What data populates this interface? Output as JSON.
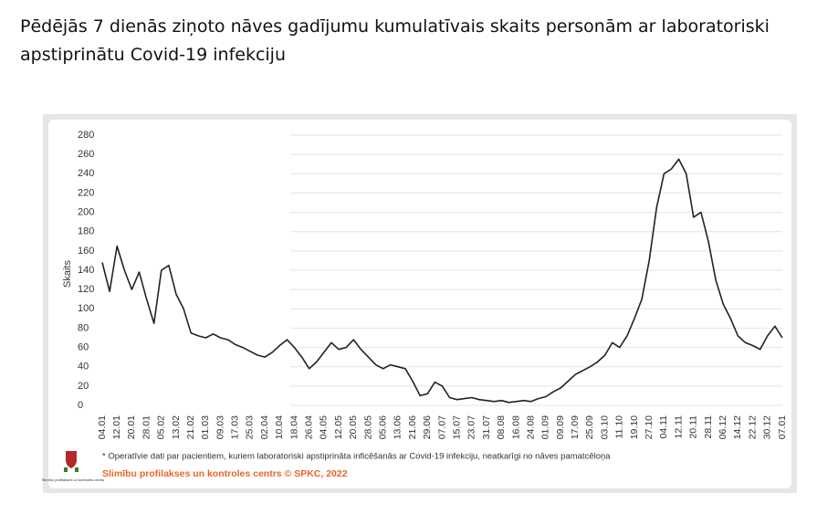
{
  "chart_data": {
    "type": "line",
    "title": "Pēdējās 7 dienās ziņoto nāves gadījumu kumulatīvais skaits personām ar laboratoriski apstiprinātu Covid-19 infekciju",
    "y_label": "Skaits",
    "footnote": "* Operatīvie dati par pacientiem, kuriem laboratoriski apstiprināta inficēšanās ar Covid-19 infekciju, neatkarīgi no nāves pamatcēloņa",
    "source": "Slimību profilakses un kontroles centrs © SPKC, 2022",
    "logo_text": "Slimību profilakses un kontroles centrs",
    "color": "#222222",
    "grid": true,
    "categories": [
      "04.01",
      null,
      "12.01",
      null,
      "20.01",
      null,
      "28.01",
      null,
      "05.02",
      null,
      "13.02",
      null,
      "21.02",
      null,
      "01.03",
      null,
      "09.03",
      null,
      "17.03",
      null,
      "25.03",
      null,
      "02.04",
      null,
      "10.04",
      null,
      "18.04",
      null,
      "26.04",
      null,
      "04.05",
      null,
      "12.05",
      null,
      "20.05",
      null,
      "28.05",
      null,
      "05.06",
      null,
      "13.06",
      null,
      "21.06",
      null,
      "29.06",
      null,
      "07.07",
      null,
      "15.07",
      null,
      "23.07",
      null,
      "31.07",
      null,
      "08.08",
      null,
      "16.08",
      null,
      "24.08",
      null,
      "01.09",
      null,
      "09.09",
      null,
      "17.09",
      null,
      "25.09",
      null,
      "03.10",
      null,
      "11.10",
      null,
      "19.10",
      null,
      "27.10",
      null,
      "04.11",
      null,
      "12.11",
      null,
      "20.11",
      null,
      "28.11",
      null,
      "06.12",
      null,
      "14.12",
      null,
      "22.12",
      null,
      "30.12",
      null,
      "07.01"
    ],
    "values": [
      148,
      118,
      165,
      140,
      120,
      138,
      110,
      85,
      140,
      145,
      115,
      100,
      75,
      72,
      70,
      74,
      70,
      68,
      63,
      60,
      56,
      52,
      50,
      55,
      62,
      68,
      60,
      50,
      38,
      45,
      55,
      65,
      58,
      60,
      68,
      58,
      50,
      42,
      38,
      42,
      40,
      38,
      25,
      10,
      12,
      24,
      20,
      8,
      6,
      7,
      8,
      6,
      5,
      4,
      5,
      3,
      4,
      5,
      4,
      7,
      9,
      14,
      18,
      25,
      32,
      36,
      40,
      45,
      52,
      65,
      60,
      72,
      90,
      110,
      150,
      205,
      240,
      245,
      255,
      240,
      195,
      200,
      170,
      130,
      105,
      90,
      72,
      65,
      62,
      58,
      72,
      82,
      70
    ],
    "ylim": [
      0,
      280
    ],
    "yticks": [
      0,
      20,
      40,
      60,
      80,
      100,
      120,
      140,
      160,
      180,
      200,
      220,
      240,
      260,
      280
    ]
  }
}
